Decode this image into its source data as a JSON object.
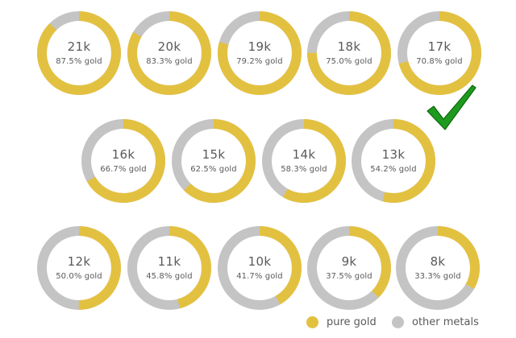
{
  "chart_data": {
    "type": "pie",
    "subtype": "donut-grid",
    "title": "",
    "items": [
      {
        "karat": "21k",
        "gold_pct": 87.5,
        "label": "87.5% gold"
      },
      {
        "karat": "20k",
        "gold_pct": 83.3,
        "label": "83.3% gold"
      },
      {
        "karat": "19k",
        "gold_pct": 79.2,
        "label": "79.2% gold"
      },
      {
        "karat": "18k",
        "gold_pct": 75.0,
        "label": "75.0% gold"
      },
      {
        "karat": "17k",
        "gold_pct": 70.8,
        "label": "70.8% gold"
      },
      {
        "karat": "16k",
        "gold_pct": 66.7,
        "label": "66.7% gold"
      },
      {
        "karat": "15k",
        "gold_pct": 62.5,
        "label": "62.5% gold"
      },
      {
        "karat": "14k",
        "gold_pct": 58.3,
        "label": "58.3% gold"
      },
      {
        "karat": "13k",
        "gold_pct": 54.2,
        "label": "54.2% gold"
      },
      {
        "karat": "12k",
        "gold_pct": 50.0,
        "label": "50.0% gold"
      },
      {
        "karat": "11k",
        "gold_pct": 45.8,
        "label": "45.8% gold"
      },
      {
        "karat": "10k",
        "gold_pct": 41.7,
        "label": "41.7% gold"
      },
      {
        "karat": "9k",
        "gold_pct": 37.5,
        "label": "37.5% gold"
      },
      {
        "karat": "8k",
        "gold_pct": 33.3,
        "label": "33.3% gold"
      }
    ],
    "series": [
      {
        "name": "pure gold",
        "color": "#e3c140"
      },
      {
        "name": "other metals",
        "color": "#c4c4c4"
      }
    ],
    "legend": {
      "position": "bottom-right",
      "entries": [
        "pure gold",
        "other metals"
      ]
    },
    "annotations": [
      {
        "type": "checkmark",
        "color": "#1e9a1e",
        "near": "17k"
      }
    ]
  },
  "legend": {
    "gold_label": "pure gold",
    "other_label": "other metals"
  },
  "colors": {
    "gold": "#e3c140",
    "other": "#c4c4c4",
    "check": "#1e9a1e"
  }
}
